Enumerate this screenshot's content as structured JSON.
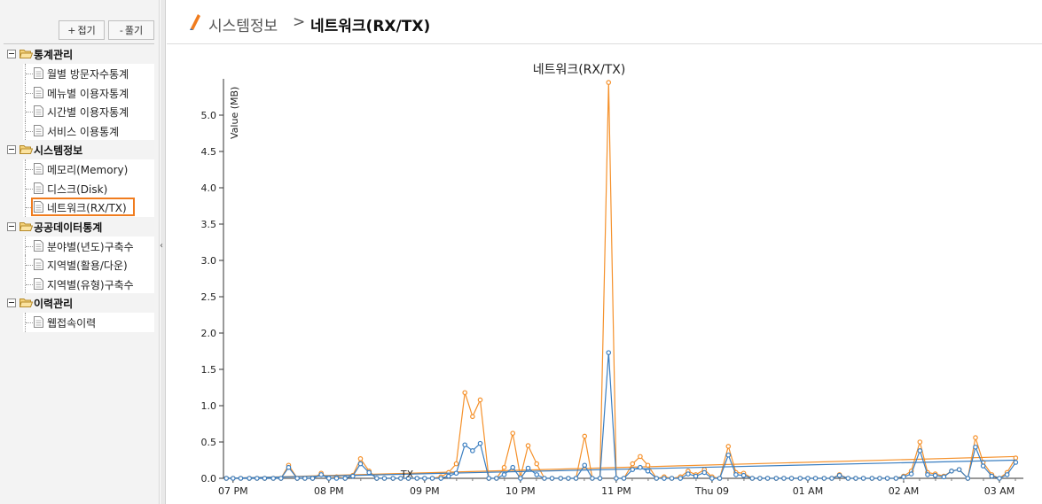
{
  "sidebar": {
    "collapse_label": "접기",
    "expand_label": "풀기",
    "groups": [
      {
        "label": "통계관리",
        "items": [
          {
            "label": "월별 방문자수통계"
          },
          {
            "label": "메뉴별 이용자통계"
          },
          {
            "label": "시간별 이용자통계"
          },
          {
            "label": "서비스 이용통계"
          }
        ]
      },
      {
        "label": "시스템정보",
        "items": [
          {
            "label": "메모리(Memory)"
          },
          {
            "label": "디스크(Disk)"
          },
          {
            "label": "네트워크(RX/TX)",
            "selected": true
          }
        ]
      },
      {
        "label": "공공데이터통계",
        "items": [
          {
            "label": "분야별(년도)구축수"
          },
          {
            "label": "지역별(활용/다운)"
          },
          {
            "label": "지역별(유형)구축수"
          }
        ]
      },
      {
        "label": "이력관리",
        "items": [
          {
            "label": "웹접속이력"
          }
        ]
      }
    ]
  },
  "collapse_handle_glyph": "‹",
  "header": {
    "breadcrumb_parent": "시스템정보",
    "breadcrumb_separator": ">",
    "breadcrumb_current": "네트워크(RX/TX)"
  },
  "colors": {
    "rx": "#f5912b",
    "tx": "#3a7ec1",
    "accent": "#f07c1e"
  },
  "chart_data": {
    "type": "line",
    "title": "네트워크(RX/TX)",
    "ylabel": "Value (MB)",
    "ylim": [
      0,
      5.5
    ],
    "y_ticks": [
      "0.0",
      "0.5",
      "1.0",
      "1.5",
      "2.0",
      "2.5",
      "3.0",
      "3.5",
      "4.0",
      "4.5",
      "5.0"
    ],
    "x_ticks": [
      {
        "label": "07 PM",
        "hour": 0
      },
      {
        "label": "08 PM",
        "hour": 1
      },
      {
        "label": "09 PM",
        "hour": 2
      },
      {
        "label": "10 PM",
        "hour": 3
      },
      {
        "label": "11 PM",
        "hour": 4
      },
      {
        "label": "Thu 09",
        "hour": 5
      },
      {
        "label": "01 AM",
        "hour": 6
      },
      {
        "label": "02 AM",
        "hour": 7
      },
      {
        "label": "03 AM",
        "hour": 8
      }
    ],
    "x_range_hours": [
      -0.1,
      8.25
    ],
    "stray_label": "TX",
    "series": [
      {
        "color": "#f5912b",
        "points": [
          [
            -0.07,
            0.0
          ],
          [
            0.0,
            0.0
          ],
          [
            0.08,
            0.0
          ],
          [
            0.17,
            0.0
          ],
          [
            0.25,
            0.0
          ],
          [
            0.33,
            0.0
          ],
          [
            0.42,
            0.0
          ],
          [
            0.5,
            0.0
          ],
          [
            0.58,
            0.18
          ],
          [
            0.67,
            0.0
          ],
          [
            0.75,
            0.0
          ],
          [
            0.83,
            0.0
          ],
          [
            0.92,
            0.07
          ],
          [
            1.0,
            0.0
          ],
          [
            1.08,
            0.02
          ],
          [
            1.17,
            0.0
          ],
          [
            1.25,
            0.04
          ],
          [
            1.33,
            0.27
          ],
          [
            1.42,
            0.1
          ],
          [
            1.5,
            0.0
          ],
          [
            1.58,
            0.0
          ],
          [
            1.67,
            0.0
          ],
          [
            1.75,
            0.0
          ],
          [
            1.83,
            0.0
          ],
          [
            1.92,
            0.0
          ],
          [
            2.0,
            0.0
          ],
          [
            2.08,
            0.0
          ],
          [
            2.17,
            0.02
          ],
          [
            2.25,
            0.08
          ],
          [
            2.33,
            0.2
          ],
          [
            2.42,
            1.18
          ],
          [
            2.5,
            0.85
          ],
          [
            2.58,
            1.08
          ],
          [
            2.67,
            0.0
          ],
          [
            2.75,
            0.0
          ],
          [
            2.83,
            0.15
          ],
          [
            2.92,
            0.62
          ],
          [
            3.0,
            0.02
          ],
          [
            3.08,
            0.45
          ],
          [
            3.17,
            0.2
          ],
          [
            3.25,
            0.0
          ],
          [
            3.33,
            0.0
          ],
          [
            3.42,
            0.0
          ],
          [
            3.5,
            0.0
          ],
          [
            3.58,
            0.0
          ],
          [
            3.67,
            0.58
          ],
          [
            3.75,
            0.0
          ],
          [
            3.83,
            0.0
          ],
          [
            3.92,
            5.45
          ],
          [
            4.0,
            0.0
          ],
          [
            4.08,
            0.0
          ],
          [
            4.17,
            0.2
          ],
          [
            4.25,
            0.3
          ],
          [
            4.33,
            0.18
          ],
          [
            4.42,
            0.0
          ],
          [
            4.5,
            0.02
          ],
          [
            4.58,
            0.0
          ],
          [
            4.67,
            0.02
          ],
          [
            4.75,
            0.1
          ],
          [
            4.83,
            0.05
          ],
          [
            4.92,
            0.12
          ],
          [
            5.0,
            0.02
          ],
          [
            5.08,
            0.0
          ],
          [
            5.17,
            0.44
          ],
          [
            5.25,
            0.08
          ],
          [
            5.33,
            0.07
          ],
          [
            5.42,
            0.0
          ],
          [
            5.5,
            0.0
          ],
          [
            5.58,
            0.0
          ],
          [
            5.67,
            0.0
          ],
          [
            5.75,
            0.0
          ],
          [
            5.83,
            0.0
          ],
          [
            5.92,
            0.0
          ],
          [
            6.0,
            0.0
          ],
          [
            6.08,
            0.0
          ],
          [
            6.17,
            0.0
          ],
          [
            6.25,
            0.0
          ],
          [
            6.33,
            0.05
          ],
          [
            6.42,
            0.0
          ],
          [
            6.5,
            0.0
          ],
          [
            6.58,
            0.0
          ],
          [
            6.67,
            0.0
          ],
          [
            6.75,
            0.0
          ],
          [
            6.83,
            0.0
          ],
          [
            6.92,
            0.0
          ],
          [
            7.0,
            0.03
          ],
          [
            7.08,
            0.1
          ],
          [
            7.17,
            0.5
          ],
          [
            7.25,
            0.08
          ],
          [
            7.33,
            0.06
          ],
          [
            7.42,
            0.03
          ],
          [
            7.5,
            0.1
          ],
          [
            7.58,
            0.12
          ],
          [
            7.67,
            0.0
          ],
          [
            7.75,
            0.56
          ],
          [
            7.83,
            0.22
          ],
          [
            7.92,
            0.05
          ],
          [
            8.0,
            0.0
          ],
          [
            8.08,
            0.08
          ],
          [
            8.17,
            0.28
          ]
        ],
        "trend": [
          [
            -0.07,
            0.0
          ],
          [
            8.17,
            0.3
          ]
        ]
      },
      {
        "color": "#3a7ec1",
        "points": [
          [
            -0.07,
            0.0
          ],
          [
            0.0,
            0.0
          ],
          [
            0.08,
            0.0
          ],
          [
            0.17,
            0.0
          ],
          [
            0.25,
            0.0
          ],
          [
            0.33,
            0.0
          ],
          [
            0.42,
            0.0
          ],
          [
            0.5,
            0.0
          ],
          [
            0.58,
            0.15
          ],
          [
            0.67,
            0.0
          ],
          [
            0.75,
            0.0
          ],
          [
            0.83,
            0.0
          ],
          [
            0.92,
            0.05
          ],
          [
            1.0,
            0.0
          ],
          [
            1.08,
            0.0
          ],
          [
            1.17,
            0.0
          ],
          [
            1.25,
            0.03
          ],
          [
            1.33,
            0.2
          ],
          [
            1.42,
            0.08
          ],
          [
            1.5,
            0.0
          ],
          [
            1.58,
            0.0
          ],
          [
            1.67,
            0.0
          ],
          [
            1.75,
            0.0
          ],
          [
            1.83,
            0.0
          ],
          [
            1.92,
            0.0
          ],
          [
            2.0,
            0.0
          ],
          [
            2.08,
            0.0
          ],
          [
            2.17,
            0.0
          ],
          [
            2.25,
            0.03
          ],
          [
            2.33,
            0.07
          ],
          [
            2.42,
            0.46
          ],
          [
            2.5,
            0.38
          ],
          [
            2.58,
            0.48
          ],
          [
            2.67,
            0.0
          ],
          [
            2.75,
            0.0
          ],
          [
            2.83,
            0.05
          ],
          [
            2.92,
            0.15
          ],
          [
            3.0,
            0.0
          ],
          [
            3.08,
            0.14
          ],
          [
            3.17,
            0.05
          ],
          [
            3.25,
            0.0
          ],
          [
            3.33,
            0.0
          ],
          [
            3.42,
            0.0
          ],
          [
            3.5,
            0.0
          ],
          [
            3.58,
            0.0
          ],
          [
            3.67,
            0.18
          ],
          [
            3.75,
            0.0
          ],
          [
            3.83,
            0.0
          ],
          [
            3.92,
            1.73
          ],
          [
            4.0,
            0.0
          ],
          [
            4.08,
            0.0
          ],
          [
            4.17,
            0.12
          ],
          [
            4.25,
            0.15
          ],
          [
            4.33,
            0.1
          ],
          [
            4.42,
            0.0
          ],
          [
            4.5,
            0.0
          ],
          [
            4.58,
            0.0
          ],
          [
            4.67,
            0.0
          ],
          [
            4.75,
            0.06
          ],
          [
            4.83,
            0.03
          ],
          [
            4.92,
            0.08
          ],
          [
            5.0,
            0.0
          ],
          [
            5.08,
            0.0
          ],
          [
            5.17,
            0.32
          ],
          [
            5.25,
            0.05
          ],
          [
            5.33,
            0.04
          ],
          [
            5.42,
            0.0
          ],
          [
            5.5,
            0.0
          ],
          [
            5.58,
            0.0
          ],
          [
            5.67,
            0.0
          ],
          [
            5.75,
            0.0
          ],
          [
            5.83,
            0.0
          ],
          [
            5.92,
            0.0
          ],
          [
            6.0,
            0.0
          ],
          [
            6.08,
            0.0
          ],
          [
            6.17,
            0.0
          ],
          [
            6.25,
            0.0
          ],
          [
            6.33,
            0.04
          ],
          [
            6.42,
            0.0
          ],
          [
            6.5,
            0.0
          ],
          [
            6.58,
            0.0
          ],
          [
            6.67,
            0.0
          ],
          [
            6.75,
            0.0
          ],
          [
            6.83,
            0.0
          ],
          [
            6.92,
            0.0
          ],
          [
            7.0,
            0.02
          ],
          [
            7.08,
            0.06
          ],
          [
            7.17,
            0.38
          ],
          [
            7.25,
            0.05
          ],
          [
            7.33,
            0.04
          ],
          [
            7.42,
            0.02
          ],
          [
            7.5,
            0.1
          ],
          [
            7.58,
            0.12
          ],
          [
            7.67,
            0.0
          ],
          [
            7.75,
            0.43
          ],
          [
            7.83,
            0.17
          ],
          [
            7.92,
            0.03
          ],
          [
            8.0,
            0.0
          ],
          [
            8.08,
            0.05
          ],
          [
            8.17,
            0.22
          ]
        ],
        "trend": [
          [
            -0.07,
            0.0
          ],
          [
            8.17,
            0.25
          ]
        ]
      }
    ]
  }
}
